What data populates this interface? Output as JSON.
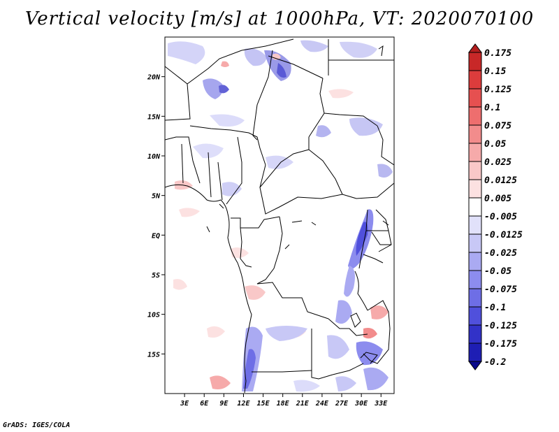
{
  "title": "Vertical velocity [m/s] at 1000hPa, VT: 2020070100",
  "footer": "GrADS: IGES/COLA",
  "map": {
    "lon_range": [
      0,
      35
    ],
    "lat_range": [
      -20,
      25
    ],
    "lon_ticks": [
      "3E",
      "6E",
      "9E",
      "12E",
      "15E",
      "18E",
      "21E",
      "24E",
      "27E",
      "30E",
      "33E"
    ],
    "lat_ticks": [
      "20N",
      "15N",
      "10N",
      "5N",
      "EQ",
      "5S",
      "10S",
      "15S"
    ]
  },
  "colorbar": {
    "levels": [
      "0.175",
      "0.15",
      "0.125",
      "0.1",
      "0.075",
      "0.05",
      "0.025",
      "0.0125",
      "0.005",
      "-0.005",
      "-0.0125",
      "-0.025",
      "-0.05",
      "-0.075",
      "-0.1",
      "-0.125",
      "-0.175",
      "-0.2"
    ],
    "colors": [
      "#b41e1e",
      "#c82828",
      "#dc3c3c",
      "#e65050",
      "#ee6e6e",
      "#f28c8c",
      "#f6aaaa",
      "#f9c8c8",
      "#fce1e1",
      "#ffffff",
      "#e1e1fa",
      "#c8c8f6",
      "#aaaaf2",
      "#8c8cee",
      "#6e6ee6",
      "#5050dc",
      "#3232c8",
      "#1e1eb4",
      "#0a0a8c"
    ]
  }
}
